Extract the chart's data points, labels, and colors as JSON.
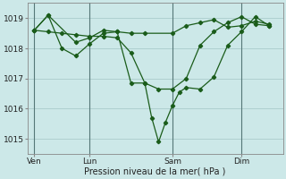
{
  "background_color": "#cce8e8",
  "grid_color": "#aacccc",
  "line_color": "#1a5c1a",
  "xlabel": "Pression niveau de la mer( hPa )",
  "ylim": [
    1014.5,
    1019.5
  ],
  "yticks": [
    1015,
    1016,
    1017,
    1018,
    1019
  ],
  "xtick_labels": [
    "Ven",
    "Lun",
    "Sam",
    "Dim"
  ],
  "xtick_positions": [
    0,
    4,
    10,
    15
  ],
  "vline_positions": [
    0,
    4,
    10,
    15
  ],
  "xlim": [
    -0.5,
    18
  ],
  "series": [
    {
      "x": [
        0,
        1,
        3,
        4,
        5,
        6,
        7,
        8,
        10,
        11,
        12,
        13,
        14,
        15,
        16,
        17
      ],
      "y": [
        1018.6,
        1019.1,
        1018.2,
        1018.35,
        1018.6,
        1018.55,
        1018.5,
        1018.5,
        1018.5,
        1018.75,
        1018.85,
        1018.95,
        1018.7,
        1018.75,
        1018.9,
        1018.8
      ]
    },
    {
      "x": [
        0,
        1,
        2,
        3,
        4,
        5,
        6,
        7,
        8,
        8.5,
        9,
        9.5,
        10,
        10.5,
        11,
        12,
        13,
        14,
        15,
        16,
        17
      ],
      "y": [
        1018.6,
        1019.1,
        1018.0,
        1017.75,
        1018.15,
        1018.5,
        1018.55,
        1016.85,
        1016.85,
        1015.7,
        1014.9,
        1015.55,
        1016.1,
        1016.55,
        1016.7,
        1016.65,
        1017.05,
        1018.1,
        1018.55,
        1019.05,
        1018.75
      ]
    },
    {
      "x": [
        0,
        1,
        2,
        3,
        4,
        5,
        6,
        7,
        8,
        9,
        10,
        11,
        12,
        13,
        14,
        15,
        16,
        17
      ],
      "y": [
        1018.6,
        1018.55,
        1018.5,
        1018.45,
        1018.4,
        1018.4,
        1018.35,
        1017.85,
        1016.85,
        1016.65,
        1016.65,
        1017.0,
        1018.1,
        1018.55,
        1018.85,
        1019.05,
        1018.8,
        1018.75
      ]
    }
  ]
}
